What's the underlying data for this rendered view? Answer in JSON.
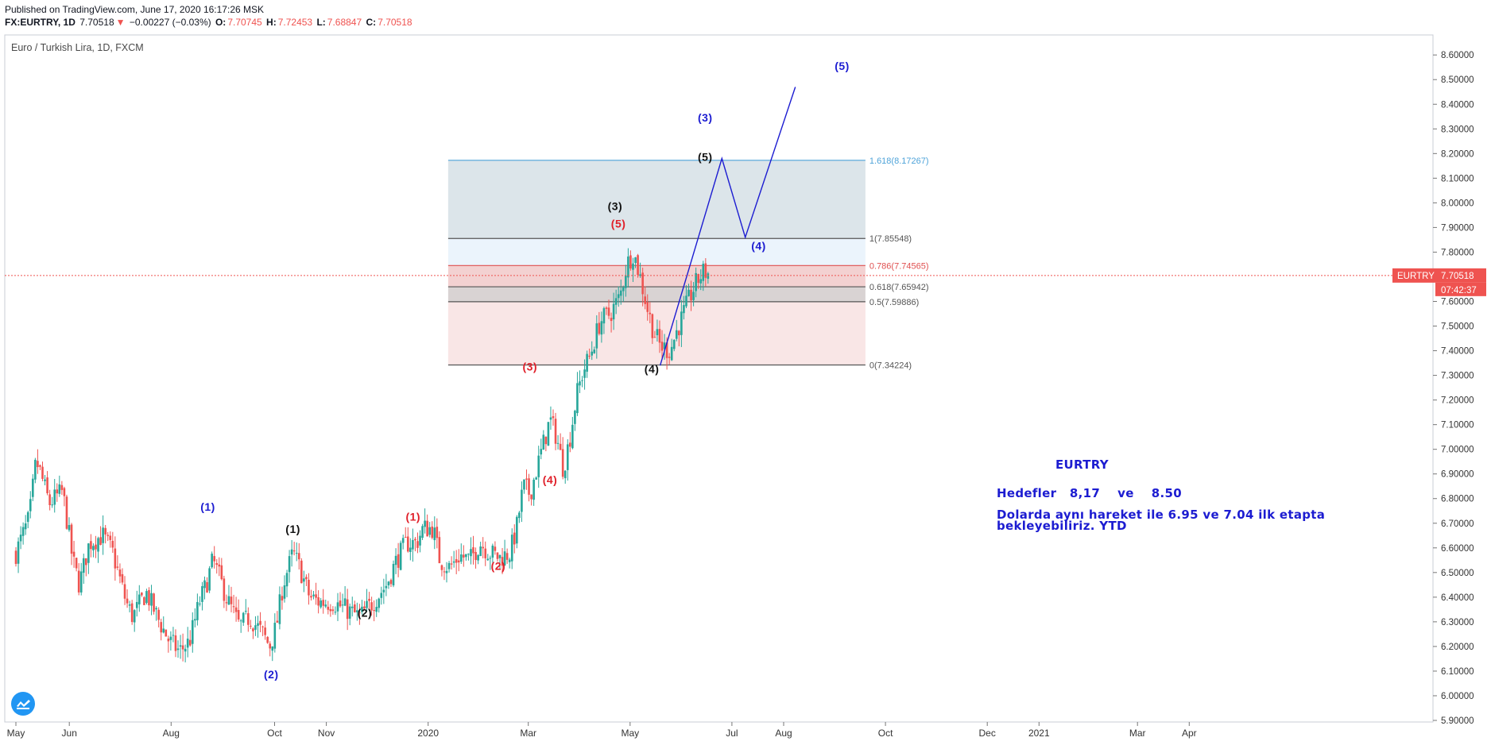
{
  "header": {
    "published": "Published on TradingView.com, June 17, 2020 16:17:26 MSK",
    "symbol": "FX:EURTRY, 1D",
    "last": "7.70518",
    "arrow": "▼",
    "change": "−0.00227 (−0.03%)",
    "o_label": "O:",
    "o": "7.70745",
    "h_label": "H:",
    "h": "7.72453",
    "l_label": "L:",
    "l": "7.68847",
    "c_label": "C:",
    "c": "7.70518"
  },
  "chart_title": "Euro / Turkish Lira, 1D, FXCM",
  "price_tag": {
    "symbol": "EURTRY",
    "price": "7.70518",
    "countdown": "07:42:37"
  },
  "notes": {
    "title": "EURTRY",
    "targets": "Hedefler   8,17    ve    8.50",
    "line1": "Dolarda aynı hareket ile 6.95 ve 7.04 ilk etapta",
    "line2": "bekleyebiliriz. YTD"
  },
  "colors": {
    "up": "#26a69a",
    "down": "#ef5350",
    "wave_blue": "#1c1cd1",
    "wave_red": "#e0202a",
    "wave_black": "#111111",
    "fib_1618": "#4ea3d9",
    "fib_786": "#e05050"
  },
  "chart_data": {
    "type": "candlestick",
    "title": "Euro / Turkish Lira, 1D, FXCM",
    "ylim": [
      5.9,
      8.65
    ],
    "y_ticks": [
      "5.90000",
      "6.00000",
      "6.10000",
      "6.20000",
      "6.30000",
      "6.40000",
      "6.50000",
      "6.60000",
      "6.70000",
      "6.80000",
      "6.90000",
      "7.00000",
      "7.10000",
      "7.20000",
      "7.30000",
      "7.40000",
      "7.50000",
      "7.60000",
      "7.70000",
      "7.80000",
      "7.90000",
      "8.00000",
      "8.10000",
      "8.20000",
      "8.30000",
      "8.40000",
      "8.50000",
      "8.60000"
    ],
    "x_ticks": [
      {
        "label": "May",
        "d": 0
      },
      {
        "label": "Jun",
        "d": 32
      },
      {
        "label": "Aug",
        "d": 93
      },
      {
        "label": "Oct",
        "d": 155
      },
      {
        "label": "Nov",
        "d": 186
      },
      {
        "label": "2020",
        "d": 247
      },
      {
        "label": "Mar",
        "d": 307
      },
      {
        "label": "May",
        "d": 368
      },
      {
        "label": "Jul",
        "d": 429
      },
      {
        "label": "Aug",
        "d": 460
      },
      {
        "label": "Oct",
        "d": 521
      },
      {
        "label": "Dec",
        "d": 582
      },
      {
        "label": "2021",
        "d": 613
      },
      {
        "label": "Mar",
        "d": 672
      },
      {
        "label": "Apr",
        "d": 703
      }
    ],
    "price_path": [
      [
        0,
        6.58
      ],
      [
        8,
        6.72
      ],
      [
        12,
        6.95
      ],
      [
        14,
        6.92
      ],
      [
        20,
        6.78
      ],
      [
        28,
        6.83
      ],
      [
        34,
        6.55
      ],
      [
        38,
        6.45
      ],
      [
        44,
        6.62
      ],
      [
        52,
        6.65
      ],
      [
        58,
        6.58
      ],
      [
        66,
        6.38
      ],
      [
        70,
        6.32
      ],
      [
        78,
        6.42
      ],
      [
        86,
        6.3
      ],
      [
        92,
        6.22
      ],
      [
        98,
        6.18
      ],
      [
        104,
        6.22
      ],
      [
        110,
        6.38
      ],
      [
        114,
        6.45
      ],
      [
        118,
        6.55
      ],
      [
        122,
        6.48
      ],
      [
        126,
        6.4
      ],
      [
        134,
        6.28
      ],
      [
        140,
        6.32
      ],
      [
        148,
        6.25
      ],
      [
        152,
        6.2
      ],
      [
        156,
        6.28
      ],
      [
        160,
        6.45
      ],
      [
        166,
        6.58
      ],
      [
        170,
        6.52
      ],
      [
        176,
        6.4
      ],
      [
        182,
        6.38
      ],
      [
        190,
        6.38
      ],
      [
        198,
        6.35
      ],
      [
        206,
        6.32
      ],
      [
        214,
        6.38
      ],
      [
        222,
        6.45
      ],
      [
        228,
        6.55
      ],
      [
        234,
        6.62
      ],
      [
        240,
        6.62
      ],
      [
        244,
        6.68
      ],
      [
        250,
        6.68
      ],
      [
        254,
        6.55
      ],
      [
        260,
        6.52
      ],
      [
        266,
        6.57
      ],
      [
        272,
        6.55
      ],
      [
        278,
        6.62
      ],
      [
        284,
        6.58
      ],
      [
        290,
        6.56
      ],
      [
        296,
        6.58
      ],
      [
        300,
        6.68
      ],
      [
        304,
        6.85
      ],
      [
        308,
        6.82
      ],
      [
        312,
        6.92
      ],
      [
        316,
        7.02
      ],
      [
        320,
        7.12
      ],
      [
        324,
        7.05
      ],
      [
        328,
        6.92
      ],
      [
        332,
        7.05
      ],
      [
        336,
        7.22
      ],
      [
        340,
        7.32
      ],
      [
        344,
        7.38
      ],
      [
        350,
        7.52
      ],
      [
        356,
        7.55
      ],
      [
        362,
        7.62
      ],
      [
        366,
        7.75
      ],
      [
        370,
        7.8
      ],
      [
        374,
        7.7
      ],
      [
        378,
        7.58
      ],
      [
        382,
        7.48
      ],
      [
        386,
        7.42
      ],
      [
        392,
        7.4
      ],
      [
        396,
        7.48
      ],
      [
        400,
        7.55
      ],
      [
        404,
        7.62
      ],
      [
        408,
        7.68
      ],
      [
        412,
        7.72
      ],
      [
        416,
        7.71
      ]
    ],
    "wave_labels": [
      {
        "text": "(1)",
        "d": 115,
        "v": 6.75,
        "c": "blue"
      },
      {
        "text": "(2)",
        "d": 153,
        "v": 6.07,
        "c": "blue"
      },
      {
        "text": "(3)",
        "d": 413,
        "v": 8.33,
        "c": "blue"
      },
      {
        "text": "(4)",
        "d": 445,
        "v": 7.81,
        "c": "blue"
      },
      {
        "text": "(5)",
        "d": 495,
        "v": 8.54,
        "c": "blue"
      },
      {
        "text": "(1)",
        "d": 166,
        "v": 6.66,
        "c": "black"
      },
      {
        "text": "(2)",
        "d": 209,
        "v": 6.32,
        "c": "black"
      },
      {
        "text": "(3)",
        "d": 359,
        "v": 7.97,
        "c": "black"
      },
      {
        "text": "(4)",
        "d": 381,
        "v": 7.31,
        "c": "black"
      },
      {
        "text": "(5)",
        "d": 413,
        "v": 8.17,
        "c": "black"
      },
      {
        "text": "(1)",
        "d": 238,
        "v": 6.71,
        "c": "red"
      },
      {
        "text": "(2)",
        "d": 289,
        "v": 6.51,
        "c": "red"
      },
      {
        "text": "(3)",
        "d": 308,
        "v": 7.32,
        "c": "red"
      },
      {
        "text": "(4)",
        "d": 320,
        "v": 6.86,
        "c": "red"
      },
      {
        "text": "(5)",
        "d": 361,
        "v": 7.9,
        "c": "red"
      }
    ],
    "projection_path": [
      [
        386,
        7.34
      ],
      [
        423,
        8.18
      ],
      [
        437,
        7.86
      ],
      [
        467,
        8.47
      ]
    ],
    "fib": {
      "x_start": 259,
      "x_end": 509,
      "levels": [
        {
          "label": "1.618(8.17267)",
          "v": 8.17267,
          "color": "#4ea3d9"
        },
        {
          "label": "1(7.85548)",
          "v": 7.85548,
          "color": "#555555"
        },
        {
          "label": "0.786(7.74565)",
          "v": 7.74565,
          "color": "#e05050"
        },
        {
          "label": "0.618(7.65942)",
          "v": 7.65942,
          "color": "#555555"
        },
        {
          "label": "0.5(7.59886)",
          "v": 7.59886,
          "color": "#555555"
        },
        {
          "label": "0(7.34224)",
          "v": 7.34224,
          "color": "#555555"
        }
      ]
    },
    "current_price": 7.70518
  }
}
